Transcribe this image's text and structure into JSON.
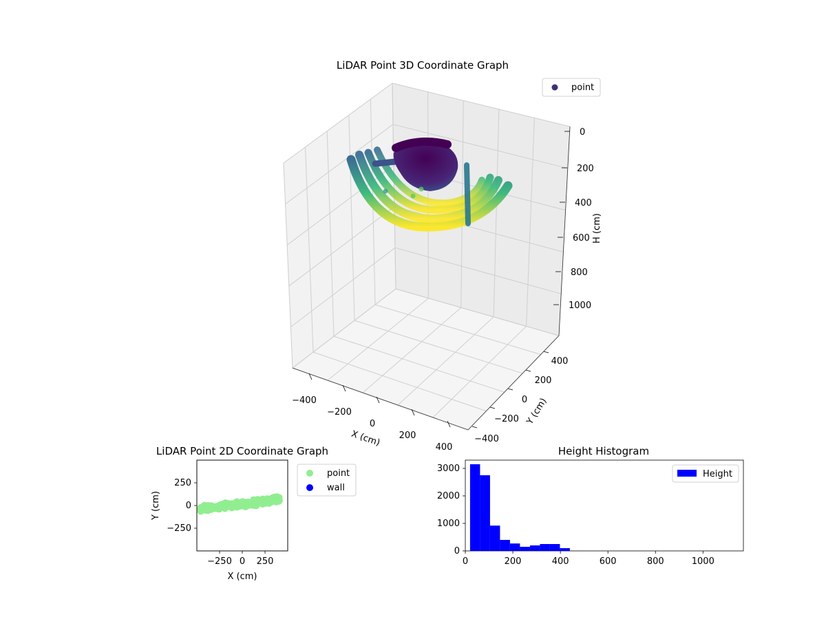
{
  "chart_data": [
    {
      "type": "scatter",
      "projection": "3d",
      "title": "LiDAR Point 3D Coordinate Graph",
      "xlabel": "X (cm)",
      "ylabel": "Y (cm)",
      "zlabel": "H (cm)",
      "x_ticks": [
        "−400",
        "−200",
        "0",
        "200",
        "400"
      ],
      "y_ticks": [
        "−400",
        "−200",
        "0",
        "200",
        "400"
      ],
      "z_ticks": [
        "0",
        "200",
        "400",
        "600",
        "800",
        "1000"
      ],
      "xlim": [
        -450,
        450
      ],
      "ylim": [
        -450,
        450
      ],
      "zlim": [
        0,
        1100
      ],
      "z_inverted": true,
      "colormap": "viridis",
      "grid": true,
      "legend": {
        "position": "top-right",
        "entries": [
          {
            "label": "point",
            "color": "#3f2f7d"
          }
        ]
      },
      "structures": [
        {
          "shape": "dome",
          "center_x": 0,
          "center_y": 100,
          "height_range": [
            60,
            160
          ],
          "radius": 150
        },
        {
          "shape": "arc-bands",
          "count": 4,
          "x_range": [
            -380,
            380
          ],
          "height_range": [
            130,
            470
          ]
        }
      ]
    },
    {
      "type": "scatter",
      "title": "LiDAR Point 2D Coordinate Graph",
      "xlabel": "X (cm)",
      "ylabel": "Y (cm)",
      "x_ticks": [
        "−250",
        "0",
        "250"
      ],
      "y_ticks": [
        "250",
        "0",
        "−250"
      ],
      "xlim": [
        -500,
        500
      ],
      "ylim": [
        -500,
        500
      ],
      "legend": {
        "position": "outside-right",
        "entries": [
          {
            "label": "point",
            "color": "#90ee90"
          },
          {
            "label": "wall",
            "color": "#0000ff"
          }
        ]
      },
      "series": [
        {
          "name": "point",
          "color": "#90ee90",
          "x_range": [
            -460,
            410
          ],
          "y_range": [
            -180,
            150
          ],
          "trend": "rising-band"
        }
      ]
    },
    {
      "type": "bar",
      "subtype": "histogram",
      "title": "Height Histogram",
      "xlabel": "",
      "ylabel": "",
      "x_ticks": [
        "0",
        "200",
        "400",
        "600",
        "800",
        "1000"
      ],
      "y_ticks": [
        "0",
        "1000",
        "2000",
        "3000"
      ],
      "xlim": [
        0,
        1170
      ],
      "ylim": [
        0,
        3300
      ],
      "bin_width": 42,
      "bin_starts": [
        20,
        62,
        104,
        146,
        188,
        230,
        272,
        314,
        356,
        398
      ],
      "values": [
        3150,
        2750,
        920,
        400,
        270,
        150,
        200,
        250,
        250,
        100
      ],
      "bar_color": "#0000ff",
      "legend": {
        "position": "top-right",
        "entries": [
          {
            "label": "Height",
            "color": "#0000ff"
          }
        ]
      }
    }
  ]
}
